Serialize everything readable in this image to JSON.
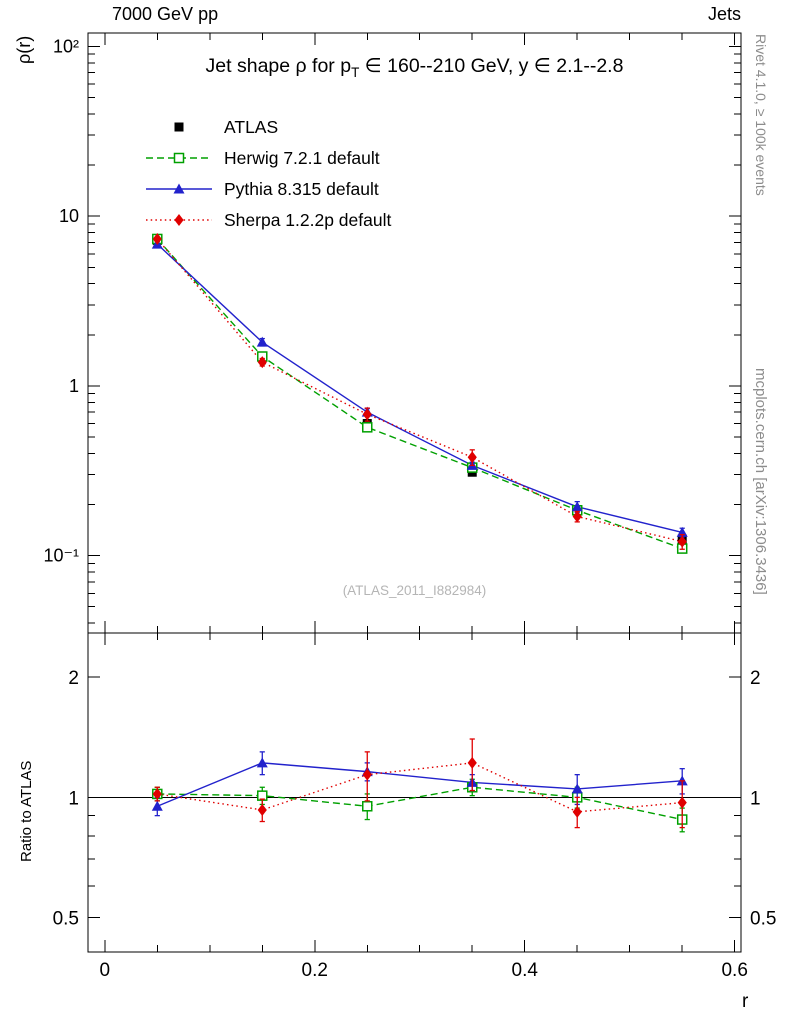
{
  "header": {
    "left": "7000 GeV pp",
    "right": "Jets"
  },
  "side_notes": {
    "top_right": "Rivet 4.1.0, ≥ 100k events",
    "bottom_right": "mcplots.cern.ch [arXiv:1306.3436]"
  },
  "watermark": "(ATLAS_2011_I882984)",
  "axes": {
    "y_main_label": "ρ(r)",
    "y_ratio_label": "Ratio to ATLAS",
    "x_label": "r",
    "x_ticks": [
      {
        "v": 0,
        "label": "0"
      },
      {
        "v": 0.2,
        "label": "0.2"
      },
      {
        "v": 0.4,
        "label": "0.4"
      },
      {
        "v": 0.6,
        "label": "0.6"
      }
    ],
    "x_minor_step": 0.05,
    "y_main_ticks": [
      {
        "v": 100,
        "label": "10²"
      },
      {
        "v": 10,
        "label": "10"
      },
      {
        "v": 1,
        "label": "1"
      },
      {
        "v": 0.1,
        "label": "10⁻¹"
      }
    ],
    "y_ratio_ticks": [
      {
        "v": 2,
        "label": "2"
      },
      {
        "v": 1,
        "label": "1"
      },
      {
        "v": 0.5,
        "label": "0.5"
      }
    ],
    "y_ratio_minor_ticks": [
      0.6,
      0.7,
      0.8,
      0.9
    ]
  },
  "chart_data": {
    "type": "line",
    "title": "Jet shape ρ for p_T ∈ 160--210 GeV, y ∈ 2.1--2.8",
    "title_display": {
      "pre": "Jet shape ρ for p",
      "sub": "T",
      "post": " ∈ 160--210 GeV, y ∈ 2.1--2.8"
    },
    "xlabel": "r",
    "ylabel_main": "ρ(r)",
    "ylabel_ratio": "Ratio to ATLAS",
    "x_frame_range": [
      -0.016,
      0.606
    ],
    "y_main_scale": "log",
    "y_main_range": [
      0.035,
      120
    ],
    "y_ratio_scale": "log",
    "y_ratio_range": [
      0.41,
      2.58
    ],
    "ratio_reference": "ATLAS",
    "x": [
      0.05,
      0.15,
      0.25,
      0.35,
      0.45,
      0.55
    ],
    "series": [
      {
        "id": "atlas",
        "name": "ATLAS",
        "color": "#000000",
        "marker": "square-filled",
        "line": "none",
        "values": [
          7.2,
          1.48,
          0.6,
          0.31,
          0.185,
          0.125
        ],
        "errors": [
          0.3,
          0.07,
          0.03,
          0.015,
          0.012,
          0.009
        ]
      },
      {
        "id": "herwig",
        "name": "Herwig 7.2.1 default",
        "color": "#00A000",
        "marker": "square-open",
        "line": "dashed",
        "values": [
          7.34,
          1.49,
          0.57,
          0.33,
          0.185,
          0.11
        ],
        "errors": [
          0.1,
          0.04,
          0.025,
          0.012,
          0.008,
          0.006
        ],
        "ratio": [
          1.02,
          1.01,
          0.95,
          1.06,
          1.0,
          0.88
        ],
        "ratio_errors": [
          0.04,
          0.05,
          0.07,
          0.05,
          0.06,
          0.06
        ]
      },
      {
        "id": "pythia",
        "name": "Pythia 8.315 default",
        "color": "#2222CC",
        "marker": "triangle-filled",
        "line": "solid",
        "values": [
          6.84,
          1.81,
          0.7,
          0.34,
          0.194,
          0.137
        ],
        "errors": [
          0.25,
          0.09,
          0.035,
          0.015,
          0.014,
          0.008
        ],
        "ratio": [
          0.95,
          1.22,
          1.16,
          1.09,
          1.05,
          1.1
        ],
        "ratio_errors": [
          0.05,
          0.08,
          0.06,
          0.05,
          0.09,
          0.08
        ]
      },
      {
        "id": "sherpa",
        "name": "Sherpa 1.2.2p default",
        "color": "#E00000",
        "marker": "diamond-filled",
        "line": "dotted",
        "values": [
          7.34,
          1.38,
          0.68,
          0.38,
          0.17,
          0.121
        ],
        "errors": [
          0.15,
          0.07,
          0.06,
          0.04,
          0.012,
          0.012
        ],
        "ratio": [
          1.02,
          0.93,
          1.14,
          1.22,
          0.92,
          0.97
        ],
        "ratio_errors": [
          0.04,
          0.06,
          0.16,
          0.18,
          0.08,
          0.13
        ]
      }
    ]
  },
  "colors": {
    "frame": "#000000",
    "watermark": "#b5b5b5",
    "side_note": "#8c8c8c"
  }
}
